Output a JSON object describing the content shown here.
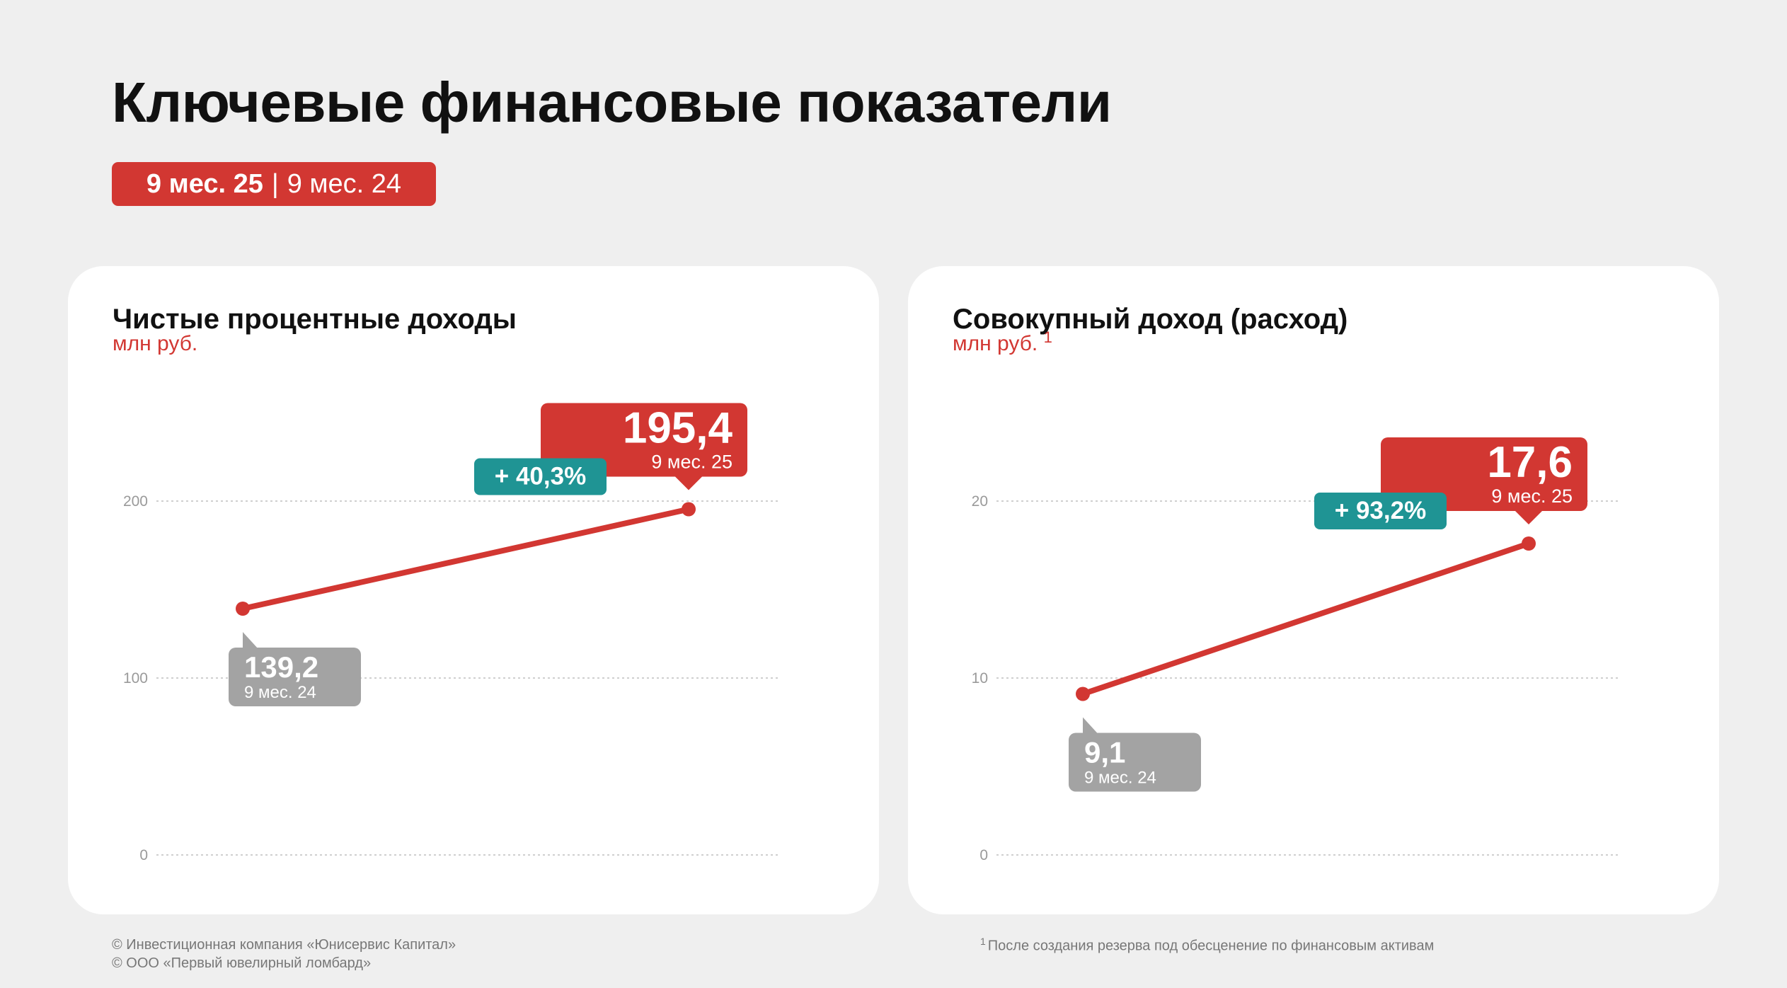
{
  "title": "Ключевые финансовые показатели",
  "period": {
    "current": "9 мес. 25",
    "separator": "|",
    "previous": "9 мес. 24"
  },
  "colors": {
    "accent": "#d23732",
    "growth": "#1f9494",
    "previous": "#a3a3a3",
    "background": "#efefef",
    "card": "#ffffff"
  },
  "chart_data": [
    {
      "type": "line",
      "title": "Чистые процентные доходы",
      "unit": "млн руб.",
      "footnote_ref": "",
      "x": [
        "9 мес. 24",
        "9 мес. 25"
      ],
      "values": [
        139.2,
        195.4
      ],
      "value_labels": [
        "139,2",
        "195,4"
      ],
      "period_labels": [
        "9 мес. 24",
        "9 мес. 25"
      ],
      "growth_label": "+ 40,3%",
      "yticks": [
        0,
        100,
        200
      ],
      "ytick_labels": [
        "0",
        "100",
        "200"
      ],
      "ylim": [
        0,
        200
      ],
      "grid": true
    },
    {
      "type": "line",
      "title": "Совокупный доход (расход)",
      "unit": "млн руб.",
      "footnote_ref": "1",
      "x": [
        "9 мес. 24",
        "9 мес. 25"
      ],
      "values": [
        9.1,
        17.6
      ],
      "value_labels": [
        "9,1",
        "17,6"
      ],
      "period_labels": [
        "9 мес. 24",
        "9 мес. 25"
      ],
      "growth_label": "+ 93,2%",
      "yticks": [
        0,
        10,
        20
      ],
      "ytick_labels": [
        "0",
        "10",
        "20"
      ],
      "ylim": [
        0,
        20
      ],
      "grid": true
    }
  ],
  "footer": {
    "copyright": [
      "© Инвестиционная компания «Юнисервис Капитал»",
      "© ООО «Первый ювелирный ломбард»"
    ],
    "footnote_mark": "1",
    "footnote_text": "После создания резерва под обесценение по финансовым активам"
  }
}
